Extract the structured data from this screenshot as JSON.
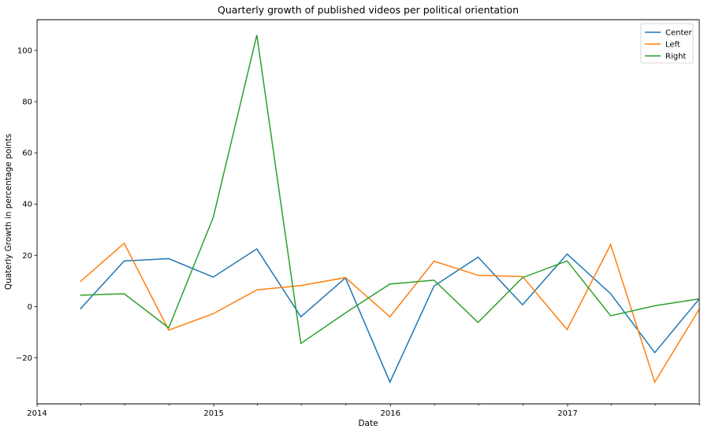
{
  "chart_data": {
    "type": "line",
    "title": "Quarterly growth of published videos per political orientation",
    "xlabel": "Date",
    "ylabel": "Quaterly Growth in percentage points",
    "x_tick_labels": [
      "2014",
      "2015",
      "2016",
      "2017"
    ],
    "y_tick_labels": [
      "−20",
      "0",
      "20",
      "40",
      "60",
      "80",
      "100"
    ],
    "y_ticks": [
      -20,
      0,
      20,
      40,
      60,
      80,
      100
    ],
    "ylim": [
      -38,
      112
    ],
    "xlim": [
      "2014-01-01",
      "2017-09-30"
    ],
    "x": [
      "2014-03-31",
      "2014-06-30",
      "2014-09-30",
      "2014-12-31",
      "2015-03-31",
      "2015-06-30",
      "2015-09-30",
      "2015-12-31",
      "2016-03-31",
      "2016-06-30",
      "2016-09-30",
      "2016-12-31",
      "2017-03-31",
      "2017-06-30",
      "2017-09-30"
    ],
    "series": [
      {
        "name": "Center",
        "color": "#1f77b4",
        "values": [
          -1,
          17.8,
          18.7,
          11.5,
          22.5,
          -4,
          11.2,
          -29.5,
          8,
          19.3,
          0.7,
          20.5,
          5,
          -18,
          3
        ]
      },
      {
        "name": "Left",
        "color": "#ff7f0e",
        "values": [
          9.7,
          24.7,
          -9.2,
          -2.8,
          6.5,
          8.2,
          11.3,
          -4,
          17.7,
          12.2,
          11.7,
          -9,
          24.2,
          -29.5,
          -1
        ]
      },
      {
        "name": "Right",
        "color": "#2ca02c",
        "values": [
          4.4,
          5,
          -8.3,
          34.8,
          106,
          -14.4,
          -2.5,
          8.8,
          10.3,
          -6.2,
          11.3,
          17.8,
          -3.6,
          0.3,
          3
        ]
      }
    ],
    "legend": "top-right",
    "grid": false
  }
}
